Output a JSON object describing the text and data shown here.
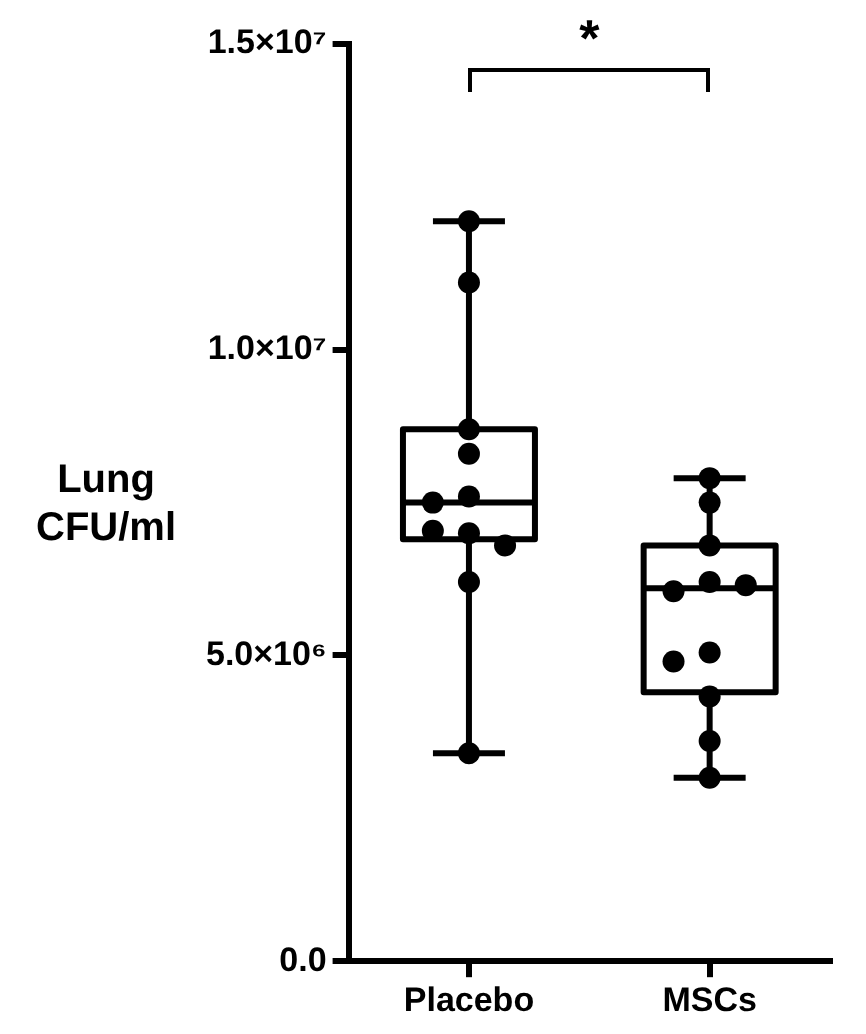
{
  "chart_data": {
    "type": "box",
    "ylabel": "Lung CFU/ml",
    "categories": [
      "Placebo",
      "MSCs"
    ],
    "color": "#000000",
    "boxes": [
      {
        "low": 3400000,
        "q1": 6900000,
        "median": 7500000,
        "q3": 8700000,
        "high": 12100000
      },
      {
        "low": 3000000,
        "q1": 4400000,
        "median": 6100000,
        "q3": 6800000,
        "high": 7900000
      }
    ],
    "series": [
      {
        "type": "scatter",
        "color": "#000000",
        "x": [
          "Placebo",
          "Placebo",
          "Placebo",
          "Placebo",
          "Placebo",
          "Placebo",
          "Placebo",
          "Placebo",
          "Placebo",
          "Placebo",
          "Placebo",
          "MSCs",
          "MSCs",
          "MSCs",
          "MSCs",
          "MSCs",
          "MSCs",
          "MSCs",
          "MSCs",
          "MSCs",
          "MSCs",
          "MSCs"
        ],
        "values": [
          12100000,
          11100000,
          8700000,
          8300000,
          7600000,
          7500000,
          7000000,
          7040000,
          6800000,
          6200000,
          3400000,
          7900000,
          7500000,
          6800000,
          6200000,
          6050000,
          6150000,
          5050000,
          4900000,
          4330000,
          3600000,
          3000000
        ]
      }
    ],
    "ylim": [
      0,
      15000000
    ],
    "yticks": [
      {
        "value": 0,
        "label": "0.0"
      },
      {
        "value": 5000000,
        "label": "5.0×10⁶"
      },
      {
        "value": 10000000,
        "label": "1.0×10⁷"
      },
      {
        "value": 15000000,
        "label": "1.5×10⁷"
      }
    ],
    "annotations": [
      "*"
    ],
    "grid": false,
    "legend": false,
    "marker": "circle"
  }
}
